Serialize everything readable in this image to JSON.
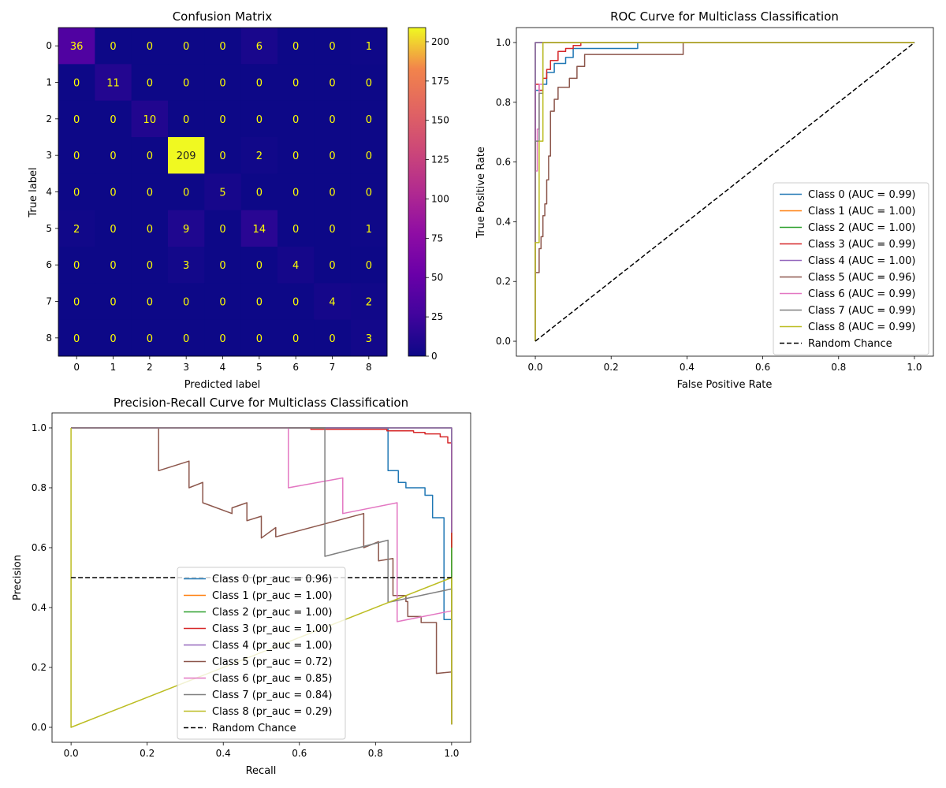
{
  "figure": {
    "background": "#ffffff"
  },
  "chart_data": [
    {
      "type": "heatmap",
      "title": "Confusion Matrix",
      "xlabel": "Predicted label",
      "ylabel": "True label",
      "categories": [
        "0",
        "1",
        "2",
        "3",
        "4",
        "5",
        "6",
        "7",
        "8"
      ],
      "matrix": [
        [
          36,
          0,
          0,
          0,
          0,
          6,
          0,
          0,
          1
        ],
        [
          0,
          11,
          0,
          0,
          0,
          0,
          0,
          0,
          0
        ],
        [
          0,
          0,
          10,
          0,
          0,
          0,
          0,
          0,
          0
        ],
        [
          0,
          0,
          0,
          209,
          0,
          2,
          0,
          0,
          0
        ],
        [
          0,
          0,
          0,
          0,
          5,
          0,
          0,
          0,
          0
        ],
        [
          2,
          0,
          0,
          9,
          0,
          14,
          0,
          0,
          1
        ],
        [
          0,
          0,
          0,
          3,
          0,
          0,
          4,
          0,
          0
        ],
        [
          0,
          0,
          0,
          0,
          0,
          0,
          0,
          4,
          2
        ],
        [
          0,
          0,
          0,
          0,
          0,
          0,
          0,
          0,
          3
        ]
      ],
      "colormap": "plasma",
      "value_range": [
        0,
        209
      ],
      "colorbar_ticks": [
        "0",
        "25",
        "50",
        "75",
        "100",
        "125",
        "150",
        "175",
        "200"
      ],
      "label_color_low": "#ffff00",
      "label_color_high": "#222222"
    },
    {
      "type": "line",
      "title": "ROC Curve for Multiclass Classification",
      "xlabel": "False Positive Rate",
      "ylabel": "True Positive Rate",
      "xlim": [
        -0.05,
        1.05
      ],
      "ylim": [
        -0.05,
        1.05
      ],
      "xticks": [
        "0.0",
        "0.2",
        "0.4",
        "0.6",
        "0.8",
        "1.0"
      ],
      "yticks": [
        "0.0",
        "0.2",
        "0.4",
        "0.6",
        "0.8",
        "1.0"
      ],
      "legend_position": "lower-right",
      "series": [
        {
          "name": "Class 0 (AUC = 0.99)",
          "color": "#1f77b4",
          "points": [
            [
              0,
              0
            ],
            [
              0,
              0.84
            ],
            [
              0.02,
              0.84
            ],
            [
              0.02,
              0.86
            ],
            [
              0.03,
              0.86
            ],
            [
              0.03,
              0.9
            ],
            [
              0.05,
              0.9
            ],
            [
              0.05,
              0.93
            ],
            [
              0.08,
              0.93
            ],
            [
              0.08,
              0.95
            ],
            [
              0.1,
              0.95
            ],
            [
              0.1,
              0.98
            ],
            [
              0.27,
              0.98
            ],
            [
              0.27,
              1.0
            ],
            [
              1.0,
              1.0
            ]
          ]
        },
        {
          "name": "Class 1 (AUC = 1.00)",
          "color": "#ff7f0e",
          "points": [
            [
              0,
              0
            ],
            [
              0,
              1.0
            ],
            [
              1.0,
              1.0
            ]
          ]
        },
        {
          "name": "Class 2 (AUC = 1.00)",
          "color": "#2ca02c",
          "points": [
            [
              0,
              0
            ],
            [
              0,
              1.0
            ],
            [
              1.0,
              1.0
            ]
          ]
        },
        {
          "name": "Class 3 (AUC = 0.99)",
          "color": "#d62728",
          "points": [
            [
              0,
              0
            ],
            [
              0,
              0.86
            ],
            [
              0.01,
              0.86
            ],
            [
              0.01,
              0.84
            ],
            [
              0.02,
              0.84
            ],
            [
              0.02,
              0.88
            ],
            [
              0.03,
              0.88
            ],
            [
              0.03,
              0.91
            ],
            [
              0.04,
              0.91
            ],
            [
              0.04,
              0.94
            ],
            [
              0.06,
              0.94
            ],
            [
              0.06,
              0.97
            ],
            [
              0.08,
              0.97
            ],
            [
              0.08,
              0.98
            ],
            [
              0.1,
              0.98
            ],
            [
              0.1,
              0.99
            ],
            [
              0.12,
              0.99
            ],
            [
              0.12,
              1.0
            ],
            [
              1.0,
              1.0
            ]
          ]
        },
        {
          "name": "Class 4 (AUC = 1.00)",
          "color": "#9467bd",
          "points": [
            [
              0,
              0
            ],
            [
              0,
              1.0
            ],
            [
              1.0,
              1.0
            ]
          ]
        },
        {
          "name": "Class 5 (AUC = 0.96)",
          "color": "#8c564b",
          "points": [
            [
              0,
              0
            ],
            [
              0,
              0.23
            ],
            [
              0.01,
              0.23
            ],
            [
              0.01,
              0.31
            ],
            [
              0.015,
              0.31
            ],
            [
              0.015,
              0.35
            ],
            [
              0.02,
              0.35
            ],
            [
              0.02,
              0.42
            ],
            [
              0.025,
              0.42
            ],
            [
              0.025,
              0.46
            ],
            [
              0.03,
              0.46
            ],
            [
              0.03,
              0.54
            ],
            [
              0.035,
              0.54
            ],
            [
              0.035,
              0.62
            ],
            [
              0.04,
              0.62
            ],
            [
              0.04,
              0.77
            ],
            [
              0.05,
              0.77
            ],
            [
              0.05,
              0.81
            ],
            [
              0.06,
              0.81
            ],
            [
              0.06,
              0.85
            ],
            [
              0.09,
              0.85
            ],
            [
              0.09,
              0.88
            ],
            [
              0.11,
              0.88
            ],
            [
              0.11,
              0.92
            ],
            [
              0.13,
              0.92
            ],
            [
              0.13,
              0.96
            ],
            [
              0.39,
              0.96
            ],
            [
              0.39,
              1.0
            ],
            [
              1.0,
              1.0
            ]
          ]
        },
        {
          "name": "Class 6 (AUC = 0.99)",
          "color": "#e377c2",
          "points": [
            [
              0,
              0
            ],
            [
              0,
              0.57
            ],
            [
              0.005,
              0.57
            ],
            [
              0.005,
              0.71
            ],
            [
              0.01,
              0.71
            ],
            [
              0.01,
              0.86
            ],
            [
              0.02,
              0.86
            ],
            [
              0.02,
              1.0
            ],
            [
              1.0,
              1.0
            ]
          ]
        },
        {
          "name": "Class 7 (AUC = 0.99)",
          "color": "#7f7f7f",
          "points": [
            [
              0,
              0
            ],
            [
              0,
              0.67
            ],
            [
              0.01,
              0.67
            ],
            [
              0.01,
              0.83
            ],
            [
              0.02,
              0.83
            ],
            [
              0.02,
              1.0
            ],
            [
              1.0,
              1.0
            ]
          ]
        },
        {
          "name": "Class 8 (AUC = 0.99)",
          "color": "#bcbd22",
          "points": [
            [
              0,
              0
            ],
            [
              0,
              0.33
            ],
            [
              0.01,
              0.33
            ],
            [
              0.01,
              0.67
            ],
            [
              0.02,
              0.67
            ],
            [
              0.02,
              1.0
            ],
            [
              1.0,
              1.0
            ]
          ]
        },
        {
          "name": "Random Chance",
          "color": "#000000",
          "dashed": true,
          "points": [
            [
              0,
              0
            ],
            [
              1,
              1
            ]
          ]
        }
      ]
    },
    {
      "type": "line",
      "title": "Precision-Recall Curve for Multiclass Classification",
      "xlabel": "Recall",
      "ylabel": "Precision",
      "xlim": [
        -0.05,
        1.05
      ],
      "ylim": [
        -0.05,
        1.05
      ],
      "xticks": [
        "0.0",
        "0.2",
        "0.4",
        "0.6",
        "0.8",
        "1.0"
      ],
      "yticks": [
        "0.0",
        "0.2",
        "0.4",
        "0.6",
        "0.8",
        "1.0"
      ],
      "legend_position": "lower-center",
      "series": [
        {
          "name": "Class 0 (pr_auc = 0.96)",
          "color": "#1f77b4",
          "points": [
            [
              0,
              1.0
            ],
            [
              0.833,
              1.0
            ],
            [
              0.833,
              0.857
            ],
            [
              0.86,
              0.857
            ],
            [
              0.86,
              0.818
            ],
            [
              0.88,
              0.818
            ],
            [
              0.88,
              0.8
            ],
            [
              0.93,
              0.8
            ],
            [
              0.93,
              0.775
            ],
            [
              0.95,
              0.775
            ],
            [
              0.95,
              0.7
            ],
            [
              0.98,
              0.7
            ],
            [
              0.98,
              0.36
            ],
            [
              1.0,
              0.36
            ],
            [
              1.0,
              0.33
            ]
          ]
        },
        {
          "name": "Class 1 (pr_auc = 1.00)",
          "color": "#ff7f0e",
          "points": [
            [
              0,
              1.0
            ],
            [
              1.0,
              1.0
            ],
            [
              1.0,
              0.01
            ]
          ]
        },
        {
          "name": "Class 2 (pr_auc = 1.00)",
          "color": "#2ca02c",
          "points": [
            [
              0,
              1.0
            ],
            [
              1.0,
              1.0
            ],
            [
              1.0,
              0.01
            ]
          ]
        },
        {
          "name": "Class 3 (pr_auc = 1.00)",
          "color": "#d62728",
          "points": [
            [
              0,
              1.0
            ],
            [
              0.63,
              1.0
            ],
            [
              0.63,
              0.995
            ],
            [
              0.83,
              0.995
            ],
            [
              0.83,
              0.99
            ],
            [
              0.9,
              0.99
            ],
            [
              0.9,
              0.985
            ],
            [
              0.93,
              0.985
            ],
            [
              0.93,
              0.98
            ],
            [
              0.97,
              0.98
            ],
            [
              0.97,
              0.97
            ],
            [
              0.99,
              0.97
            ],
            [
              0.99,
              0.95
            ],
            [
              1.0,
              0.95
            ],
            [
              1.0,
              0.6
            ]
          ]
        },
        {
          "name": "Class 4 (pr_auc = 1.00)",
          "color": "#9467bd",
          "points": [
            [
              0,
              1.0
            ],
            [
              1.0,
              1.0
            ],
            [
              1.0,
              0.65
            ]
          ]
        },
        {
          "name": "Class 5 (pr_auc = 0.72)",
          "color": "#8c564b",
          "points": [
            [
              0,
              1.0
            ],
            [
              0.23,
              1.0
            ],
            [
              0.23,
              0.857
            ],
            [
              0.31,
              0.889
            ],
            [
              0.31,
              0.8
            ],
            [
              0.346,
              0.818
            ],
            [
              0.346,
              0.75
            ],
            [
              0.423,
              0.714
            ],
            [
              0.423,
              0.733
            ],
            [
              0.462,
              0.75
            ],
            [
              0.462,
              0.69
            ],
            [
              0.5,
              0.705
            ],
            [
              0.5,
              0.632
            ],
            [
              0.538,
              0.667
            ],
            [
              0.538,
              0.636
            ],
            [
              0.769,
              0.714
            ],
            [
              0.769,
              0.6
            ],
            [
              0.808,
              0.62
            ],
            [
              0.808,
              0.556
            ],
            [
              0.846,
              0.564
            ],
            [
              0.846,
              0.44
            ],
            [
              0.88,
              0.44
            ],
            [
              0.88,
              0.42
            ],
            [
              0.885,
              0.42
            ],
            [
              0.885,
              0.37
            ],
            [
              0.92,
              0.37
            ],
            [
              0.92,
              0.35
            ],
            [
              0.96,
              0.35
            ],
            [
              0.96,
              0.18
            ],
            [
              1.0,
              0.185
            ],
            [
              1.0,
              0.01
            ]
          ]
        },
        {
          "name": "Class 6 (pr_auc = 0.85)",
          "color": "#e377c2",
          "points": [
            [
              0,
              1.0
            ],
            [
              0.571,
              1.0
            ],
            [
              0.571,
              0.8
            ],
            [
              0.714,
              0.833
            ],
            [
              0.714,
              0.714
            ],
            [
              0.857,
              0.75
            ],
            [
              0.857,
              0.353
            ],
            [
              1.0,
              0.389
            ],
            [
              1.0,
              0.01
            ]
          ]
        },
        {
          "name": "Class 7 (pr_auc = 0.84)",
          "color": "#7f7f7f",
          "points": [
            [
              0,
              1.0
            ],
            [
              0.667,
              1.0
            ],
            [
              0.667,
              0.571
            ],
            [
              0.833,
              0.625
            ],
            [
              0.833,
              0.417
            ],
            [
              1.0,
              0.462
            ],
            [
              1.0,
              0.01
            ]
          ]
        },
        {
          "name": "Class 8 (pr_auc = 0.29)",
          "color": "#bcbd22",
          "points": [
            [
              0,
              1.0
            ],
            [
              0,
              0.0
            ],
            [
              1.0,
              0.5
            ],
            [
              1.0,
              0.01
            ]
          ]
        },
        {
          "name": "Random Chance",
          "color": "#000000",
          "dashed": true,
          "points": [
            [
              0,
              0.5
            ],
            [
              1,
              0.5
            ]
          ]
        }
      ]
    }
  ]
}
